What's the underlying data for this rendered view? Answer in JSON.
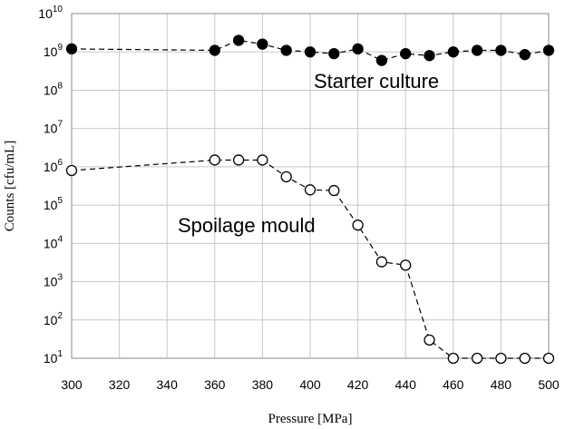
{
  "chart_data": {
    "type": "scatter",
    "title": "",
    "xlabel": "Pressure [MPa]",
    "ylabel": "Counts [cfu/mL]",
    "xlim": [
      300,
      500
    ],
    "x_ticks": [
      300,
      320,
      340,
      360,
      380,
      400,
      420,
      440,
      460,
      480,
      500
    ],
    "y_scale": "log",
    "ylim": [
      10,
      10000000000
    ],
    "y_tick_exponents": [
      1,
      2,
      3,
      4,
      5,
      6,
      7,
      8,
      9,
      10
    ],
    "y_tick_base": "10",
    "grid": true,
    "series": [
      {
        "name": "Starter culture",
        "marker": "filled-circle",
        "line": "dashed",
        "x": [
          300,
          360,
          370,
          380,
          390,
          400,
          410,
          420,
          430,
          440,
          450,
          460,
          470,
          480,
          490,
          500
        ],
        "y": [
          1200000000,
          1100000000,
          2000000000,
          1600000000,
          1100000000,
          1000000000,
          900000000,
          1200000000,
          600000000,
          900000000,
          800000000,
          1000000000,
          1100000000,
          1100000000,
          850000000,
          1100000000
        ]
      },
      {
        "name": "Spoilage mould",
        "marker": "open-circle",
        "line": "dashed",
        "x": [
          300,
          360,
          370,
          380,
          390,
          400,
          410,
          420,
          430,
          440,
          450,
          460,
          470,
          480,
          490,
          500
        ],
        "y": [
          800000,
          1500000,
          1500000,
          1500000,
          550000,
          250000,
          240000,
          30000,
          3300,
          2700,
          30,
          10,
          10,
          10,
          10,
          10
        ]
      }
    ],
    "annotations": [
      "Starter culture",
      "Spoilage mould"
    ]
  }
}
